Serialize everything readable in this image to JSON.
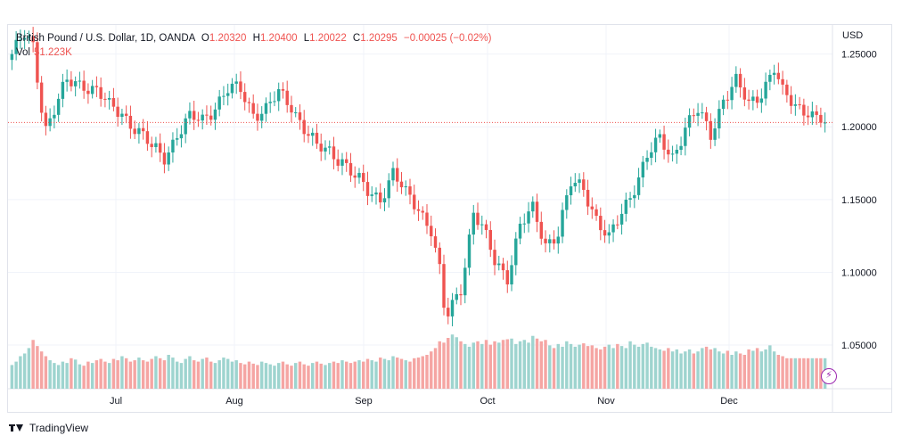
{
  "legend": {
    "symbol": "British Pound / U.S. Dollar, 1D, OANDA",
    "o_label": "O",
    "o": "1.20320",
    "h_label": "H",
    "h": "1.20400",
    "l_label": "L",
    "l": "1.20022",
    "c_label": "C",
    "c": "1.20295",
    "change": "−0.00025 (−0.02%)",
    "vol_label": "Vol",
    "vol": "51.223K"
  },
  "axis_currency": "USD",
  "footer": {
    "brand": "TradingView"
  },
  "colors": {
    "up": "#26a69a",
    "down": "#ef5350",
    "vol_up": "#9ed4cf",
    "vol_down": "#f5a5a3",
    "last_line": "#ef5350"
  },
  "chart_data": {
    "type": "candlestick",
    "price_range": [
      1.02,
      1.27
    ],
    "y_ticks": [
      "1.25000",
      "1.20000",
      "1.15000",
      "1.10000",
      "1.05000"
    ],
    "x_ticks": [
      "Jul",
      "Aug",
      "Sep",
      "Oct",
      "Nov",
      "Dec"
    ],
    "last_price": 1.20295,
    "anchors": [
      [
        0,
        1.25
      ],
      [
        3,
        1.262
      ],
      [
        5,
        1.255
      ],
      [
        7,
        1.215
      ],
      [
        8,
        1.2
      ],
      [
        10,
        1.212
      ],
      [
        13,
        1.23
      ],
      [
        17,
        1.23
      ],
      [
        20,
        1.225
      ],
      [
        23,
        1.213
      ],
      [
        26,
        1.21
      ],
      [
        29,
        1.2
      ],
      [
        33,
        1.185
      ],
      [
        36,
        1.18
      ],
      [
        39,
        1.195
      ],
      [
        42,
        1.205
      ],
      [
        45,
        1.205
      ],
      [
        48,
        1.215
      ],
      [
        51,
        1.225
      ],
      [
        54,
        1.225
      ],
      [
        57,
        1.21
      ],
      [
        60,
        1.212
      ],
      [
        63,
        1.222
      ],
      [
        66,
        1.215
      ],
      [
        69,
        1.2
      ],
      [
        72,
        1.185
      ],
      [
        75,
        1.183
      ],
      [
        78,
        1.178
      ],
      [
        81,
        1.165
      ],
      [
        84,
        1.155
      ],
      [
        87,
        1.152
      ],
      [
        90,
        1.168
      ],
      [
        93,
        1.153
      ],
      [
        96,
        1.145
      ],
      [
        99,
        1.13
      ],
      [
        101,
        1.1
      ],
      [
        102,
        1.075
      ],
      [
        103,
        1.07
      ],
      [
        106,
        1.09
      ],
      [
        109,
        1.142
      ],
      [
        111,
        1.13
      ],
      [
        114,
        1.107
      ],
      [
        117,
        1.098
      ],
      [
        120,
        1.132
      ],
      [
        123,
        1.142
      ],
      [
        126,
        1.12
      ],
      [
        129,
        1.128
      ],
      [
        132,
        1.16
      ],
      [
        135,
        1.158
      ],
      [
        138,
        1.138
      ],
      [
        141,
        1.122
      ],
      [
        144,
        1.14
      ],
      [
        147,
        1.16
      ],
      [
        150,
        1.18
      ],
      [
        153,
        1.19
      ],
      [
        156,
        1.18
      ],
      [
        159,
        1.2
      ],
      [
        162,
        1.21
      ],
      [
        165,
        1.195
      ],
      [
        168,
        1.22
      ],
      [
        171,
        1.23
      ],
      [
        174,
        1.215
      ],
      [
        177,
        1.225
      ],
      [
        180,
        1.24
      ],
      [
        182,
        1.222
      ],
      [
        185,
        1.215
      ],
      [
        188,
        1.212
      ],
      [
        190,
        1.205
      ],
      [
        192,
        1.203
      ]
    ],
    "volume_levels": [
      0.35,
      0.4,
      0.48,
      0.52,
      0.6,
      0.72,
      0.63,
      0.55,
      0.48,
      0.42,
      0.38,
      0.35,
      0.4,
      0.38,
      0.45,
      0.43,
      0.36,
      0.34,
      0.4,
      0.38,
      0.42,
      0.44,
      0.4,
      0.38,
      0.44,
      0.42,
      0.48,
      0.45,
      0.4,
      0.42,
      0.46,
      0.42,
      0.4,
      0.44,
      0.48,
      0.45,
      0.42,
      0.5,
      0.46,
      0.4,
      0.38,
      0.44,
      0.48,
      0.42,
      0.4,
      0.44,
      0.46,
      0.4,
      0.38,
      0.42,
      0.46,
      0.44,
      0.4,
      0.42,
      0.38,
      0.36,
      0.4,
      0.37,
      0.35,
      0.4,
      0.38,
      0.36,
      0.34,
      0.38,
      0.4,
      0.36,
      0.34,
      0.38,
      0.4,
      0.36,
      0.34,
      0.38,
      0.4,
      0.37,
      0.35,
      0.38,
      0.4,
      0.38,
      0.42,
      0.4,
      0.38,
      0.4,
      0.42,
      0.4,
      0.44,
      0.42,
      0.4,
      0.46,
      0.44,
      0.42,
      0.48,
      0.46,
      0.44,
      0.42,
      0.4,
      0.45,
      0.46,
      0.48,
      0.5,
      0.55,
      0.6,
      0.7,
      0.68,
      0.75,
      0.8,
      0.76,
      0.7,
      0.66,
      0.62,
      0.68,
      0.7,
      0.66,
      0.72,
      0.65,
      0.7,
      0.68,
      0.72,
      0.73,
      0.74,
      0.66,
      0.7,
      0.72,
      0.68,
      0.78,
      0.74,
      0.7,
      0.72,
      0.64,
      0.6,
      0.66,
      0.62,
      0.7,
      0.66,
      0.62,
      0.65,
      0.67,
      0.63,
      0.64,
      0.6,
      0.58,
      0.62,
      0.65,
      0.6,
      0.66,
      0.63,
      0.6,
      0.7,
      0.65,
      0.62,
      0.66,
      0.68,
      0.62,
      0.6,
      0.58,
      0.56,
      0.6,
      0.55,
      0.58,
      0.52,
      0.55,
      0.58,
      0.52,
      0.55,
      0.6,
      0.62,
      0.58,
      0.6,
      0.55,
      0.52,
      0.56,
      0.5,
      0.55,
      0.52,
      0.5,
      0.58,
      0.56,
      0.6,
      0.55,
      0.58,
      0.64,
      0.55,
      0.5,
      0.48
    ]
  }
}
